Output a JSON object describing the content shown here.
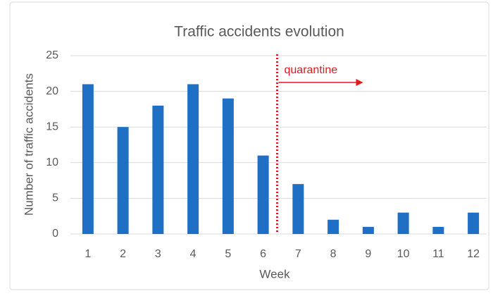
{
  "chart_data": {
    "type": "bar",
    "title": "Traffic accidents evolution",
    "x_label": "Week",
    "y_label": "Number of traffic accidents",
    "categories": [
      "1",
      "2",
      "3",
      "4",
      "5",
      "6",
      "7",
      "8",
      "9",
      "10",
      "11",
      "12"
    ],
    "values": [
      21,
      15,
      18,
      21,
      19,
      11,
      7,
      2,
      1,
      3,
      1,
      3
    ],
    "color": "#1f6fc5",
    "ylim": [
      0,
      25
    ],
    "yticks": [
      0,
      5,
      10,
      15,
      20,
      25
    ],
    "grid": true,
    "annotation": {
      "text": "quarantine",
      "color": "#e8151b"
    }
  }
}
